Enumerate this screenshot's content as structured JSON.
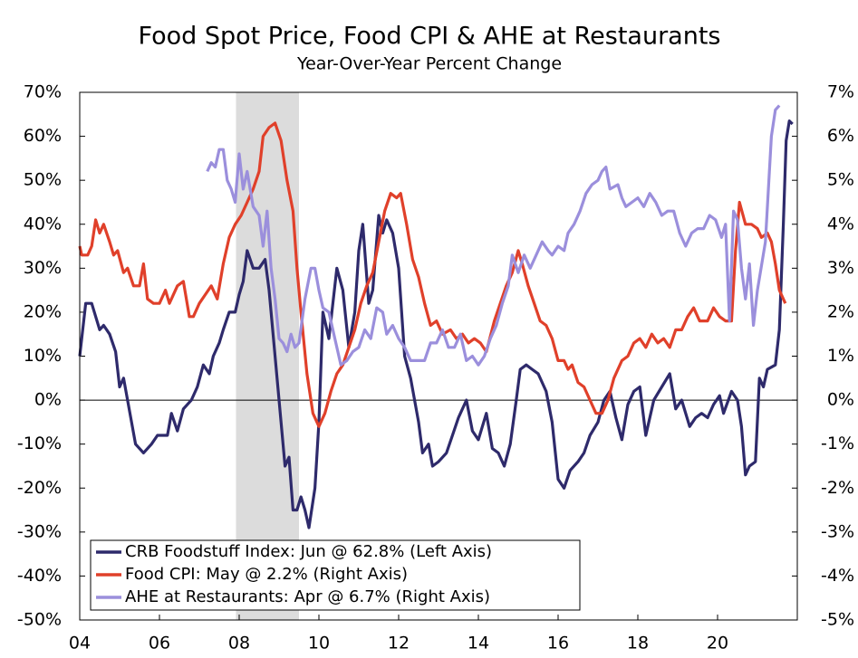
{
  "chart_data": {
    "type": "line",
    "title": "Food Spot Price, Food CPI & AHE at Restaurants",
    "subtitle": "Year-Over-Year Percent Change",
    "xlim": [
      2004,
      2022
    ],
    "xticks": [
      {
        "value": 2004,
        "label": "04"
      },
      {
        "value": 2006,
        "label": "06"
      },
      {
        "value": 2008,
        "label": "08"
      },
      {
        "value": 2010,
        "label": "10"
      },
      {
        "value": 2012,
        "label": "12"
      },
      {
        "value": 2014,
        "label": "14"
      },
      {
        "value": 2016,
        "label": "16"
      },
      {
        "value": 2018,
        "label": "18"
      },
      {
        "value": 2020,
        "label": "20"
      }
    ],
    "ylim": [
      -50,
      70
    ],
    "yticks": [
      {
        "value": -50,
        "label": "-50%"
      },
      {
        "value": -40,
        "label": "-40%"
      },
      {
        "value": -30,
        "label": "-30%"
      },
      {
        "value": -20,
        "label": "-20%"
      },
      {
        "value": -10,
        "label": "-10%"
      },
      {
        "value": 0,
        "label": "0%"
      },
      {
        "value": 10,
        "label": "10%"
      },
      {
        "value": 20,
        "label": "20%"
      },
      {
        "value": 30,
        "label": "30%"
      },
      {
        "value": 40,
        "label": "40%"
      },
      {
        "value": 50,
        "label": "50%"
      },
      {
        "value": 60,
        "label": "60%"
      },
      {
        "value": 70,
        "label": "70%"
      }
    ],
    "y2lim": [
      -5,
      7
    ],
    "y2ticks": [
      {
        "value": -5,
        "label": "-5%"
      },
      {
        "value": -4,
        "label": "-4%"
      },
      {
        "value": -3,
        "label": "-3%"
      },
      {
        "value": -2,
        "label": "-2%"
      },
      {
        "value": -1,
        "label": "-1%"
      },
      {
        "value": 0,
        "label": "0%"
      },
      {
        "value": 1,
        "label": "1%"
      },
      {
        "value": 2,
        "label": "2%"
      },
      {
        "value": 3,
        "label": "3%"
      },
      {
        "value": 4,
        "label": "4%"
      },
      {
        "value": 5,
        "label": "5%"
      },
      {
        "value": 6,
        "label": "6%"
      },
      {
        "value": 7,
        "label": "7%"
      }
    ],
    "grid": false,
    "legend": "lower left",
    "shaded_regions": [
      {
        "start": 2007.92,
        "end": 2009.5,
        "color": "#dcdcdc"
      }
    ],
    "series": [
      {
        "name": "CRB Foodstuff Index: Jun @ 62.8% (Left Axis)",
        "color": "#2e2a6b",
        "axis": "y",
        "x": [
          2004.0,
          2004.15,
          2004.3,
          2004.5,
          2004.6,
          2004.75,
          2004.9,
          2005.0,
          2005.1,
          2005.2,
          2005.4,
          2005.6,
          2005.8,
          2005.95,
          2006.2,
          2006.3,
          2006.45,
          2006.6,
          2006.8,
          2006.95,
          2007.1,
          2007.25,
          2007.35,
          2007.5,
          2007.6,
          2007.75,
          2007.9,
          2008.0,
          2008.1,
          2008.2,
          2008.35,
          2008.5,
          2008.65,
          2008.75,
          2008.85,
          2008.95,
          2009.05,
          2009.15,
          2009.25,
          2009.35,
          2009.45,
          2009.55,
          2009.65,
          2009.75,
          2009.9,
          2010.0,
          2010.1,
          2010.25,
          2010.45,
          2010.6,
          2010.75,
          2010.9,
          2011.0,
          2011.1,
          2011.25,
          2011.35,
          2011.5,
          2011.6,
          2011.7,
          2011.85,
          2012.0,
          2012.15,
          2012.3,
          2012.5,
          2012.6,
          2012.75,
          2012.85,
          2013.0,
          2013.2,
          2013.35,
          2013.5,
          2013.7,
          2013.85,
          2014.0,
          2014.2,
          2014.35,
          2014.5,
          2014.65,
          2014.8,
          2014.95,
          2015.05,
          2015.2,
          2015.35,
          2015.5,
          2015.7,
          2015.85,
          2016.0,
          2016.15,
          2016.3,
          2016.5,
          2016.65,
          2016.8,
          2017.0,
          2017.15,
          2017.3,
          2017.45,
          2017.6,
          2017.75,
          2017.9,
          2018.05,
          2018.2,
          2018.4,
          2018.6,
          2018.8,
          2018.95,
          2019.1,
          2019.3,
          2019.45,
          2019.6,
          2019.75,
          2019.9,
          2020.05,
          2020.15,
          2020.35,
          2020.5,
          2020.6,
          2020.7,
          2020.8,
          2020.95,
          2021.05,
          2021.15,
          2021.25,
          2021.45,
          2021.55,
          2021.65,
          2021.72,
          2021.8,
          2021.88
        ],
        "values": [
          10,
          22,
          22,
          16,
          17,
          15,
          11,
          3,
          5,
          0,
          -10,
          -12,
          -10,
          -8,
          -8,
          -3,
          -7,
          -2,
          0,
          3,
          8,
          6,
          10,
          13,
          16,
          20,
          20,
          24,
          27,
          34,
          30,
          30,
          32,
          25,
          15,
          5,
          -5,
          -15,
          -13,
          -25,
          -25,
          -22,
          -25,
          -29,
          -20,
          -5,
          20,
          14,
          30,
          25,
          12,
          20,
          34,
          40,
          22,
          25,
          42,
          38,
          41,
          38,
          30,
          10,
          5,
          -5,
          -12,
          -10,
          -15,
          -14,
          -12,
          -8,
          -4,
          0,
          -7,
          -9,
          -3,
          -11,
          -12,
          -15,
          -10,
          0,
          7,
          8,
          7,
          6,
          2,
          -5,
          -18,
          -20,
          -16,
          -14,
          -12,
          -8,
          -5,
          0,
          2,
          -4,
          -9,
          -1,
          2,
          3,
          -8,
          0,
          3,
          6,
          -2,
          0,
          -6,
          -4,
          -3,
          -4,
          -1,
          1,
          -3,
          2,
          0,
          -6,
          -17,
          -15,
          -14,
          5,
          3,
          7,
          8,
          16,
          40,
          59,
          63.5,
          62.8
        ]
      },
      {
        "name": "Food CPI: May @ 2.2% (Right Axis)",
        "color": "#e0402a",
        "axis": "y2",
        "x": [
          2004.0,
          2004.05,
          2004.2,
          2004.3,
          2004.4,
          2004.5,
          2004.6,
          2004.75,
          2004.85,
          2004.95,
          2005.1,
          2005.2,
          2005.35,
          2005.5,
          2005.6,
          2005.7,
          2005.85,
          2006.0,
          2006.15,
          2006.25,
          2006.45,
          2006.6,
          2006.75,
          2006.85,
          2007.0,
          2007.15,
          2007.3,
          2007.45,
          2007.6,
          2007.75,
          2007.9,
          2008.05,
          2008.2,
          2008.35,
          2008.5,
          2008.6,
          2008.75,
          2008.9,
          2009.05,
          2009.2,
          2009.35,
          2009.45,
          2009.55,
          2009.7,
          2009.85,
          2010.0,
          2010.15,
          2010.3,
          2010.45,
          2010.6,
          2010.75,
          2010.9,
          2011.05,
          2011.2,
          2011.35,
          2011.5,
          2011.65,
          2011.8,
          2011.95,
          2012.05,
          2012.2,
          2012.35,
          2012.5,
          2012.65,
          2012.8,
          2012.95,
          2013.1,
          2013.3,
          2013.45,
          2013.6,
          2013.75,
          2013.9,
          2014.05,
          2014.2,
          2014.4,
          2014.55,
          2014.7,
          2014.85,
          2015.0,
          2015.1,
          2015.25,
          2015.4,
          2015.55,
          2015.7,
          2015.85,
          2016.0,
          2016.15,
          2016.25,
          2016.35,
          2016.5,
          2016.65,
          2016.8,
          2016.95,
          2017.1,
          2017.25,
          2017.4,
          2017.6,
          2017.75,
          2017.9,
          2018.05,
          2018.2,
          2018.35,
          2018.5,
          2018.65,
          2018.8,
          2018.95,
          2019.1,
          2019.25,
          2019.4,
          2019.55,
          2019.75,
          2019.9,
          2020.05,
          2020.2,
          2020.35,
          2020.45,
          2020.55,
          2020.7,
          2020.85,
          2021.0,
          2021.1,
          2021.25,
          2021.35,
          2021.45,
          2021.55,
          2021.7
        ],
        "values": [
          3.5,
          3.3,
          3.3,
          3.5,
          4.1,
          3.8,
          4.0,
          3.6,
          3.3,
          3.4,
          2.9,
          3.0,
          2.6,
          2.6,
          3.1,
          2.3,
          2.2,
          2.2,
          2.5,
          2.2,
          2.6,
          2.7,
          1.9,
          1.9,
          2.2,
          2.4,
          2.6,
          2.3,
          3.1,
          3.7,
          4.0,
          4.2,
          4.5,
          4.8,
          5.2,
          6.0,
          6.2,
          6.3,
          5.9,
          5.0,
          4.3,
          3.0,
          2.0,
          0.6,
          -0.3,
          -0.6,
          -0.3,
          0.2,
          0.6,
          0.8,
          1.2,
          1.6,
          2.2,
          2.6,
          2.9,
          3.6,
          4.3,
          4.7,
          4.6,
          4.7,
          4.0,
          3.2,
          2.8,
          2.2,
          1.7,
          1.8,
          1.5,
          1.6,
          1.4,
          1.5,
          1.3,
          1.4,
          1.3,
          1.1,
          1.8,
          2.2,
          2.6,
          2.9,
          3.4,
          3.1,
          2.6,
          2.2,
          1.8,
          1.7,
          1.4,
          0.9,
          0.9,
          0.7,
          0.8,
          0.4,
          0.3,
          0.0,
          -0.3,
          -0.3,
          0.0,
          0.5,
          0.9,
          1.0,
          1.3,
          1.4,
          1.2,
          1.5,
          1.3,
          1.4,
          1.2,
          1.6,
          1.6,
          1.9,
          2.1,
          1.8,
          1.8,
          2.1,
          1.9,
          1.8,
          1.8,
          3.4,
          4.5,
          4.0,
          4.0,
          3.9,
          3.7,
          3.8,
          3.6,
          3.1,
          2.5,
          2.2
        ]
      },
      {
        "name": "AHE at Restaurants: Apr @ 6.7% (Right Axis)",
        "color": "#9b8fdc",
        "axis": "y2",
        "x": [
          2007.2,
          2007.3,
          2007.4,
          2007.5,
          2007.6,
          2007.7,
          2007.8,
          2007.9,
          2008.0,
          2008.1,
          2008.2,
          2008.35,
          2008.5,
          2008.6,
          2008.7,
          2008.8,
          2008.9,
          2009.0,
          2009.1,
          2009.2,
          2009.3,
          2009.4,
          2009.5,
          2009.65,
          2009.8,
          2009.9,
          2010.0,
          2010.1,
          2010.25,
          2010.4,
          2010.55,
          2010.7,
          2010.85,
          2011.0,
          2011.15,
          2011.3,
          2011.45,
          2011.6,
          2011.7,
          2011.85,
          2012.0,
          2012.15,
          2012.3,
          2012.5,
          2012.65,
          2012.8,
          2012.95,
          2013.1,
          2013.25,
          2013.4,
          2013.55,
          2013.7,
          2013.85,
          2014.0,
          2014.15,
          2014.3,
          2014.45,
          2014.6,
          2014.75,
          2014.85,
          2015.0,
          2015.15,
          2015.3,
          2015.45,
          2015.6,
          2015.75,
          2015.85,
          2016.0,
          2016.15,
          2016.25,
          2016.4,
          2016.55,
          2016.7,
          2016.85,
          2017.0,
          2017.1,
          2017.2,
          2017.3,
          2017.5,
          2017.6,
          2017.7,
          2017.85,
          2018.0,
          2018.15,
          2018.3,
          2018.45,
          2018.6,
          2018.75,
          2018.9,
          2019.05,
          2019.2,
          2019.35,
          2019.5,
          2019.65,
          2019.8,
          2019.95,
          2020.1,
          2020.2,
          2020.3,
          2020.4,
          2020.5,
          2020.6,
          2020.7,
          2020.8,
          2020.9,
          2021.0,
          2021.2,
          2021.35,
          2021.45,
          2021.55
        ],
        "values": [
          5.2,
          5.4,
          5.3,
          5.7,
          5.7,
          5.0,
          4.8,
          4.5,
          5.6,
          4.8,
          5.2,
          4.4,
          4.2,
          3.5,
          4.3,
          3.0,
          2.3,
          1.4,
          1.3,
          1.1,
          1.5,
          1.2,
          1.3,
          2.3,
          3.0,
          3.0,
          2.5,
          2.1,
          2.0,
          1.4,
          0.8,
          0.9,
          1.1,
          1.2,
          1.6,
          1.4,
          2.1,
          2.0,
          1.5,
          1.7,
          1.4,
          1.2,
          0.9,
          0.9,
          0.9,
          1.3,
          1.3,
          1.6,
          1.2,
          1.2,
          1.5,
          0.9,
          1.0,
          0.8,
          1.0,
          1.4,
          1.7,
          2.2,
          2.6,
          3.3,
          2.9,
          3.3,
          3.0,
          3.3,
          3.6,
          3.4,
          3.3,
          3.5,
          3.4,
          3.8,
          4.0,
          4.3,
          4.7,
          4.9,
          5.0,
          5.2,
          5.3,
          4.8,
          4.9,
          4.6,
          4.4,
          4.5,
          4.6,
          4.4,
          4.7,
          4.5,
          4.2,
          4.3,
          4.3,
          3.8,
          3.5,
          3.8,
          3.9,
          3.9,
          4.2,
          4.1,
          3.7,
          4.0,
          1.8,
          4.3,
          4.1,
          3.0,
          2.3,
          3.1,
          1.7,
          2.5,
          3.6,
          6.0,
          6.6,
          6.7
        ]
      }
    ]
  }
}
